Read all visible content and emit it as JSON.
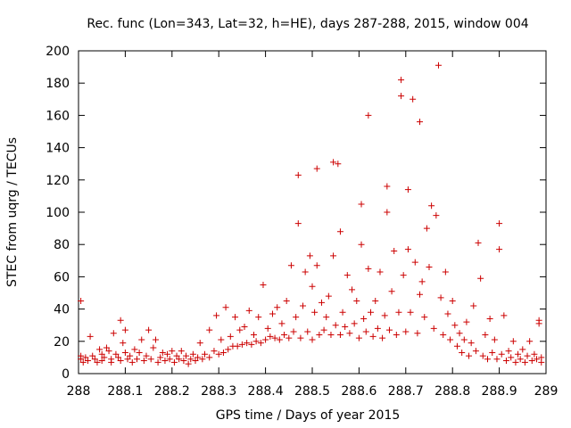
{
  "chart_data": {
    "type": "scatter",
    "title": "Rec. func (Lon=343, Lat=32, h=HE), days 287-288, 2015, window 004",
    "xlabel": "GPS time / Days of year 2015",
    "ylabel": "STEC from uqrg / TECUs",
    "xlim": [
      288,
      289
    ],
    "ylim": [
      0,
      200
    ],
    "x_ticks": [
      "288",
      "288.1",
      "288.2",
      "288.3",
      "288.4",
      "288.5",
      "288.6",
      "288.7",
      "288.8",
      "288.9",
      "289"
    ],
    "y_ticks": [
      "0",
      "20",
      "40",
      "60",
      "80",
      "100",
      "120",
      "140",
      "160",
      "180",
      "200"
    ],
    "grid": false,
    "legend": "none",
    "marker": "+",
    "color": "#cc0000",
    "series": [
      {
        "name": "STEC",
        "points": [
          [
            288.005,
            45
          ],
          [
            288.005,
            11
          ],
          [
            288.005,
            9
          ],
          [
            288.01,
            7
          ],
          [
            288.015,
            10
          ],
          [
            288.02,
            8
          ],
          [
            288.025,
            23
          ],
          [
            288.03,
            11
          ],
          [
            288.035,
            9
          ],
          [
            288.04,
            7
          ],
          [
            288.045,
            15
          ],
          [
            288.05,
            12
          ],
          [
            288.05,
            8
          ],
          [
            288.055,
            10
          ],
          [
            288.06,
            16
          ],
          [
            288.065,
            14
          ],
          [
            288.07,
            9
          ],
          [
            288.07,
            7
          ],
          [
            288.075,
            25
          ],
          [
            288.08,
            12
          ],
          [
            288.085,
            10
          ],
          [
            288.09,
            33
          ],
          [
            288.09,
            8
          ],
          [
            288.095,
            19
          ],
          [
            288.1,
            27
          ],
          [
            288.1,
            13
          ],
          [
            288.105,
            9
          ],
          [
            288.11,
            11
          ],
          [
            288.115,
            7
          ],
          [
            288.12,
            15
          ],
          [
            288.125,
            9
          ],
          [
            288.13,
            13
          ],
          [
            288.135,
            21
          ],
          [
            288.14,
            8
          ],
          [
            288.145,
            11
          ],
          [
            288.15,
            27
          ],
          [
            288.155,
            9
          ],
          [
            288.16,
            16
          ],
          [
            288.165,
            21
          ],
          [
            288.17,
            7
          ],
          [
            288.175,
            10
          ],
          [
            288.18,
            13
          ],
          [
            288.185,
            8
          ],
          [
            288.19,
            12
          ],
          [
            288.195,
            9
          ],
          [
            288.2,
            14
          ],
          [
            288.205,
            7
          ],
          [
            288.21,
            11
          ],
          [
            288.215,
            9
          ],
          [
            288.22,
            14
          ],
          [
            288.225,
            8
          ],
          [
            288.23,
            11
          ],
          [
            288.235,
            6
          ],
          [
            288.24,
            9
          ],
          [
            288.245,
            12
          ],
          [
            288.25,
            8
          ],
          [
            288.255,
            10
          ],
          [
            288.26,
            19
          ],
          [
            288.265,
            9
          ],
          [
            288.27,
            12
          ],
          [
            288.28,
            27
          ],
          [
            288.28,
            10
          ],
          [
            288.29,
            14
          ],
          [
            288.295,
            36
          ],
          [
            288.3,
            12
          ],
          [
            288.305,
            21
          ],
          [
            288.31,
            13
          ],
          [
            288.315,
            41
          ],
          [
            288.32,
            15
          ],
          [
            288.325,
            23
          ],
          [
            288.33,
            17
          ],
          [
            288.335,
            35
          ],
          [
            288.34,
            17
          ],
          [
            288.345,
            27
          ],
          [
            288.35,
            18
          ],
          [
            288.355,
            29
          ],
          [
            288.36,
            19
          ],
          [
            288.365,
            39
          ],
          [
            288.37,
            18
          ],
          [
            288.375,
            24
          ],
          [
            288.38,
            20
          ],
          [
            288.385,
            35
          ],
          [
            288.39,
            19
          ],
          [
            288.395,
            55
          ],
          [
            288.4,
            21
          ],
          [
            288.405,
            28
          ],
          [
            288.41,
            23
          ],
          [
            288.415,
            37
          ],
          [
            288.42,
            22
          ],
          [
            288.425,
            41
          ],
          [
            288.43,
            21
          ],
          [
            288.435,
            31
          ],
          [
            288.44,
            24
          ],
          [
            288.445,
            45
          ],
          [
            288.45,
            22
          ],
          [
            288.455,
            67
          ],
          [
            288.46,
            26
          ],
          [
            288.465,
            35
          ],
          [
            288.47,
            123
          ],
          [
            288.47,
            93
          ],
          [
            288.475,
            22
          ],
          [
            288.48,
            42
          ],
          [
            288.485,
            63
          ],
          [
            288.49,
            26
          ],
          [
            288.495,
            73
          ],
          [
            288.5,
            21
          ],
          [
            288.5,
            54
          ],
          [
            288.505,
            38
          ],
          [
            288.51,
            67
          ],
          [
            288.51,
            127
          ],
          [
            288.515,
            24
          ],
          [
            288.52,
            44
          ],
          [
            288.525,
            27
          ],
          [
            288.53,
            35
          ],
          [
            288.535,
            48
          ],
          [
            288.54,
            24
          ],
          [
            288.545,
            131
          ],
          [
            288.545,
            73
          ],
          [
            288.55,
            30
          ],
          [
            288.555,
            130
          ],
          [
            288.56,
            88
          ],
          [
            288.56,
            24
          ],
          [
            288.565,
            38
          ],
          [
            288.57,
            29
          ],
          [
            288.575,
            61
          ],
          [
            288.58,
            25
          ],
          [
            288.585,
            52
          ],
          [
            288.59,
            31
          ],
          [
            288.595,
            45
          ],
          [
            288.6,
            22
          ],
          [
            288.605,
            105
          ],
          [
            288.605,
            80
          ],
          [
            288.61,
            34
          ],
          [
            288.615,
            26
          ],
          [
            288.62,
            160
          ],
          [
            288.62,
            65
          ],
          [
            288.625,
            38
          ],
          [
            288.63,
            23
          ],
          [
            288.635,
            45
          ],
          [
            288.64,
            28
          ],
          [
            288.645,
            63
          ],
          [
            288.65,
            22
          ],
          [
            288.655,
            36
          ],
          [
            288.66,
            116
          ],
          [
            288.66,
            100
          ],
          [
            288.665,
            27
          ],
          [
            288.67,
            51
          ],
          [
            288.675,
            76
          ],
          [
            288.68,
            24
          ],
          [
            288.685,
            38
          ],
          [
            288.69,
            182
          ],
          [
            288.69,
            172
          ],
          [
            288.695,
            61
          ],
          [
            288.7,
            26
          ],
          [
            288.705,
            114
          ],
          [
            288.705,
            77
          ],
          [
            288.71,
            38
          ],
          [
            288.715,
            170
          ],
          [
            288.72,
            69
          ],
          [
            288.725,
            25
          ],
          [
            288.73,
            156
          ],
          [
            288.73,
            49
          ],
          [
            288.735,
            57
          ],
          [
            288.74,
            35
          ],
          [
            288.745,
            90
          ],
          [
            288.75,
            66
          ],
          [
            288.755,
            104
          ],
          [
            288.76,
            28
          ],
          [
            288.765,
            98
          ],
          [
            288.77,
            191
          ],
          [
            288.775,
            47
          ],
          [
            288.78,
            24
          ],
          [
            288.785,
            63
          ],
          [
            288.79,
            37
          ],
          [
            288.795,
            21
          ],
          [
            288.8,
            45
          ],
          [
            288.805,
            30
          ],
          [
            288.81,
            17
          ],
          [
            288.815,
            25
          ],
          [
            288.82,
            13
          ],
          [
            288.825,
            21
          ],
          [
            288.83,
            32
          ],
          [
            288.835,
            11
          ],
          [
            288.84,
            19
          ],
          [
            288.845,
            42
          ],
          [
            288.85,
            14
          ],
          [
            288.855,
            81
          ],
          [
            288.86,
            59
          ],
          [
            288.865,
            11
          ],
          [
            288.87,
            24
          ],
          [
            288.875,
            9
          ],
          [
            288.88,
            34
          ],
          [
            288.885,
            13
          ],
          [
            288.89,
            21
          ],
          [
            288.895,
            9
          ],
          [
            288.9,
            93
          ],
          [
            288.9,
            77
          ],
          [
            288.905,
            12
          ],
          [
            288.91,
            36
          ],
          [
            288.915,
            8
          ],
          [
            288.92,
            14
          ],
          [
            288.925,
            10
          ],
          [
            288.93,
            20
          ],
          [
            288.935,
            7
          ],
          [
            288.94,
            12
          ],
          [
            288.945,
            9
          ],
          [
            288.95,
            15
          ],
          [
            288.955,
            7
          ],
          [
            288.96,
            11
          ],
          [
            288.965,
            20
          ],
          [
            288.97,
            8
          ],
          [
            288.975,
            12
          ],
          [
            288.98,
            9
          ],
          [
            288.985,
            33
          ],
          [
            288.985,
            31
          ],
          [
            288.99,
            7
          ],
          [
            288.99,
            10
          ]
        ]
      }
    ]
  }
}
